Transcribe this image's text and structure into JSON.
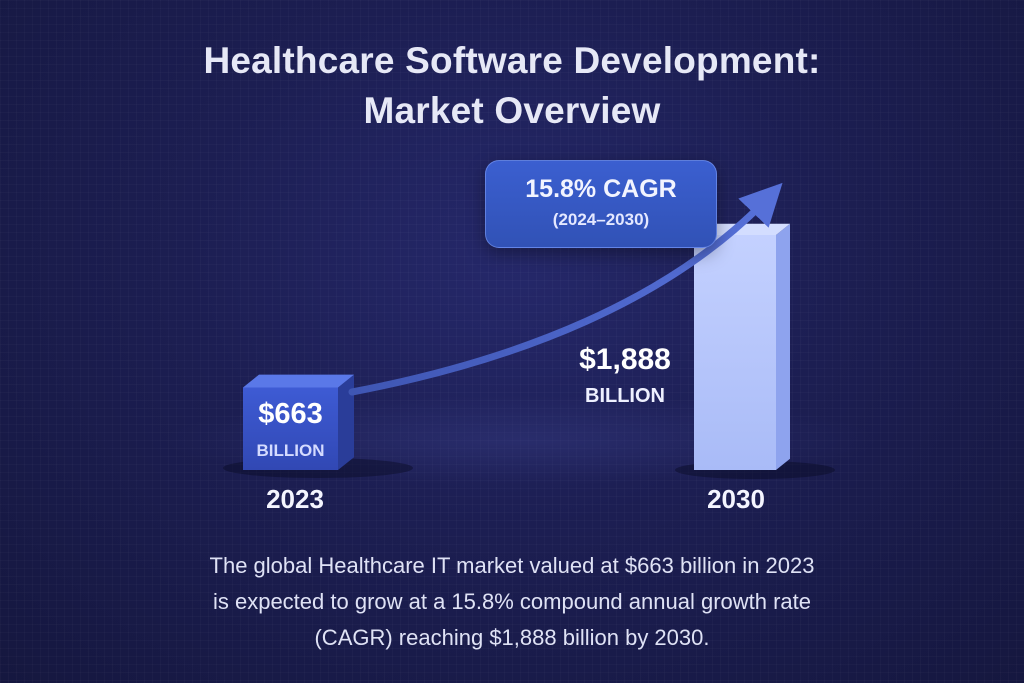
{
  "title": {
    "line1": "Healthcare Software Development:",
    "line2": "Market Overview"
  },
  "callout": {
    "main": "15.8% CAGR",
    "sub": "(2024–2030)"
  },
  "chart_data": {
    "type": "bar",
    "title": "Healthcare Software Development: Market Overview",
    "categories": [
      "2023",
      "2030"
    ],
    "values": [
      663,
      1888
    ],
    "value_labels": [
      {
        "amount": "$663",
        "unit": "BILLION"
      },
      {
        "amount": "$1,888",
        "unit": "BILLION"
      }
    ],
    "annotation": "15.8% CAGR (2024–2030)",
    "trend_arrow": true,
    "ylim": [
      0,
      1888
    ],
    "grid": false,
    "colors": {
      "bar_2023_front": "#3a55c9",
      "bar_2023_top": "#5a78e8",
      "bar_2023_side": "#2a3d99",
      "bar_2030_front": "#b9c8fb",
      "bar_2030_side": "#8ea3ee",
      "arrow": "#4d66c8",
      "callout_bg": "#3656c2"
    }
  },
  "description": {
    "line1": "The global Healthcare IT market valued at $663 billion in 2023",
    "line2": "is expected to grow at a 15.8% compound annual growth rate",
    "line3": "(CAGR) reaching $1,888 billion by 2030."
  }
}
